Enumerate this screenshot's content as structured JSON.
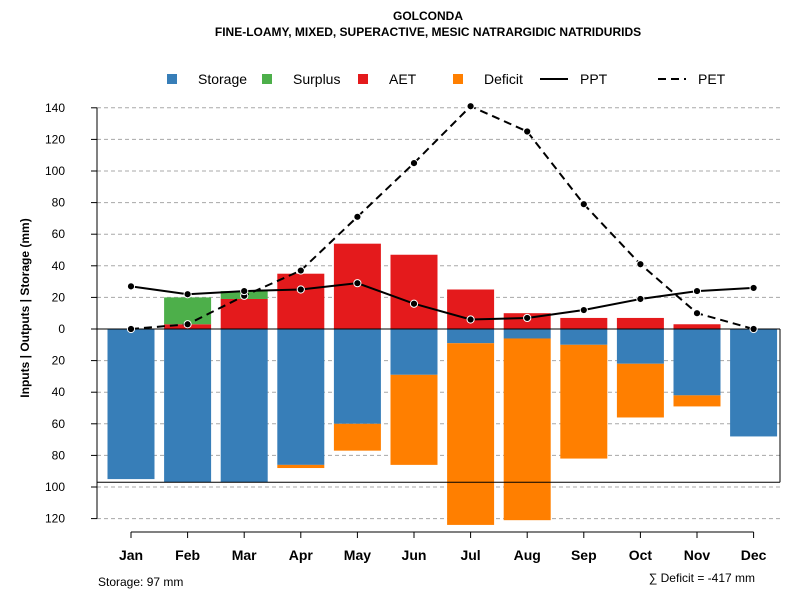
{
  "chart_data": {
    "type": "bar",
    "title": "GOLCONDA",
    "subtitle": "FINE-LOAMY, MIXED, SUPERACTIVE, MESIC NATRARGIDIC NATRIDURIDS",
    "ylabel": "Inputs | Outputs | Storage    (mm)",
    "categories": [
      "Jan",
      "Feb",
      "Mar",
      "Apr",
      "May",
      "Jun",
      "Jul",
      "Aug",
      "Sep",
      "Oct",
      "Nov",
      "Dec"
    ],
    "ylim": [
      -120,
      140
    ],
    "yticks": [
      140,
      120,
      100,
      80,
      60,
      40,
      20,
      0,
      -20,
      -40,
      -60,
      -80,
      -100,
      -120
    ],
    "ytick_labels": [
      "140",
      "120",
      "100",
      "80",
      "60",
      "40",
      "20",
      "0",
      "20",
      "40",
      "60",
      "80",
      "100",
      "120"
    ],
    "grid": true,
    "legend_position": "top",
    "series": [
      {
        "name": "Storage",
        "kind": "bar-down",
        "color": "#377EB8",
        "values": [
          95,
          97,
          97,
          86,
          60,
          29,
          9,
          6,
          10,
          22,
          42,
          68
        ]
      },
      {
        "name": "Deficit",
        "kind": "bar-down-stacked",
        "color": "#FF7F00",
        "values": [
          0,
          0,
          0,
          2,
          17,
          57,
          115,
          115,
          72,
          34,
          7,
          0
        ]
      },
      {
        "name": "AET",
        "kind": "bar-up",
        "color": "#E41A1C",
        "values": [
          0,
          3,
          19,
          35,
          54,
          47,
          25,
          10,
          7,
          7,
          3,
          0
        ]
      },
      {
        "name": "Surplus",
        "kind": "bar-up-stacked",
        "color": "#4DAF4A",
        "values": [
          0,
          17,
          5,
          0,
          0,
          0,
          0,
          0,
          0,
          0,
          0,
          0
        ]
      },
      {
        "name": "PPT",
        "kind": "line-solid",
        "color": "#000000",
        "values": [
          27,
          22,
          24,
          25,
          29,
          16,
          6,
          7,
          12,
          19,
          24,
          26
        ]
      },
      {
        "name": "PET",
        "kind": "line-dashed",
        "color": "#000000",
        "values": [
          0,
          3,
          21,
          37,
          71,
          105,
          141,
          125,
          79,
          41,
          10,
          0
        ]
      }
    ],
    "storage_capacity": 97,
    "legend": [
      {
        "label": "Storage",
        "kind": "swatch",
        "color": "#377EB8"
      },
      {
        "label": "Surplus",
        "kind": "swatch",
        "color": "#4DAF4A"
      },
      {
        "label": "AET",
        "kind": "swatch",
        "color": "#E41A1C"
      },
      {
        "label": "Deficit",
        "kind": "swatch",
        "color": "#FF7F00"
      },
      {
        "label": "PPT",
        "kind": "line-solid",
        "color": "#000000"
      },
      {
        "label": "PET",
        "kind": "line-dashed",
        "color": "#000000"
      }
    ],
    "notes": {
      "storage": "Storage: 97 mm",
      "deficit": "∑ Deficit = -417 mm"
    }
  }
}
